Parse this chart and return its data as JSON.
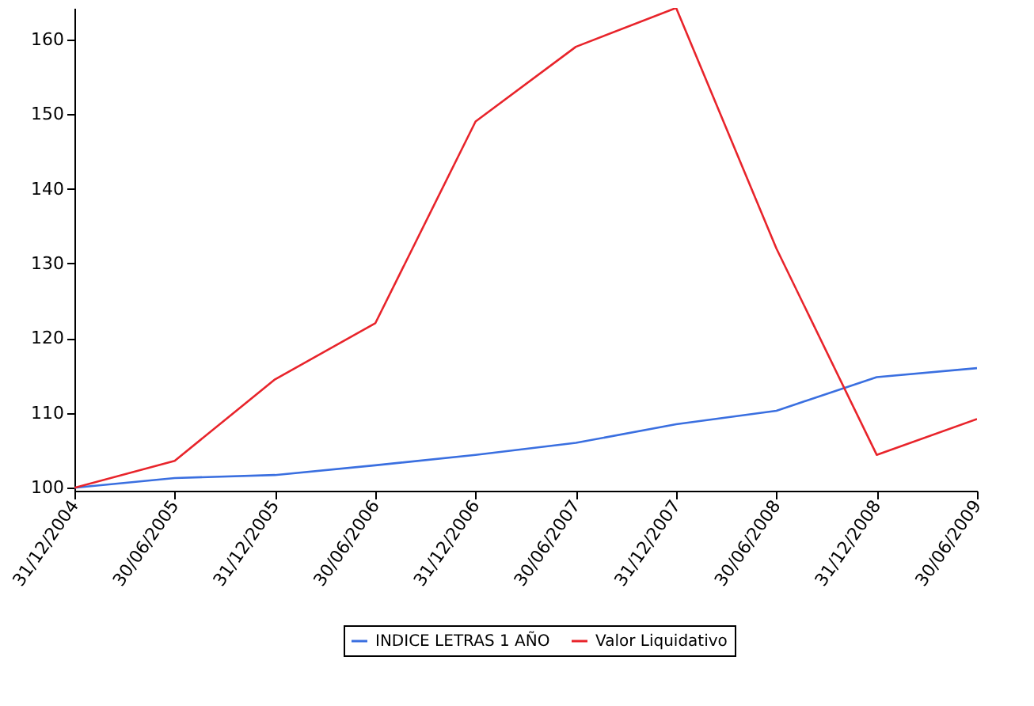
{
  "chart_data": {
    "type": "line",
    "categories": [
      "31/12/2004",
      "30/06/2005",
      "31/12/2005",
      "30/06/2006",
      "31/12/2006",
      "30/06/2007",
      "31/12/2007",
      "30/06/2008",
      "31/12/2008",
      "30/06/2009"
    ],
    "series": [
      {
        "name": "INDICE LETRAS 1 AÑO",
        "color": "#3a6fe0",
        "values": [
          100,
          101.3,
          101.7,
          103,
          104.4,
          106,
          108.5,
          110.3,
          114.8,
          116
        ]
      },
      {
        "name": "Valor Liquidativo",
        "color": "#e8242b",
        "values": [
          100,
          103.6,
          114.5,
          122,
          149,
          159,
          164.2,
          132,
          104.4,
          109.2
        ]
      }
    ],
    "ylim": [
      99.6,
      164.2
    ],
    "yticks": [
      100,
      110,
      120,
      130,
      140,
      150,
      160
    ],
    "grid": false,
    "legend": "bottom",
    "marker": "none",
    "line_style": "solid"
  }
}
